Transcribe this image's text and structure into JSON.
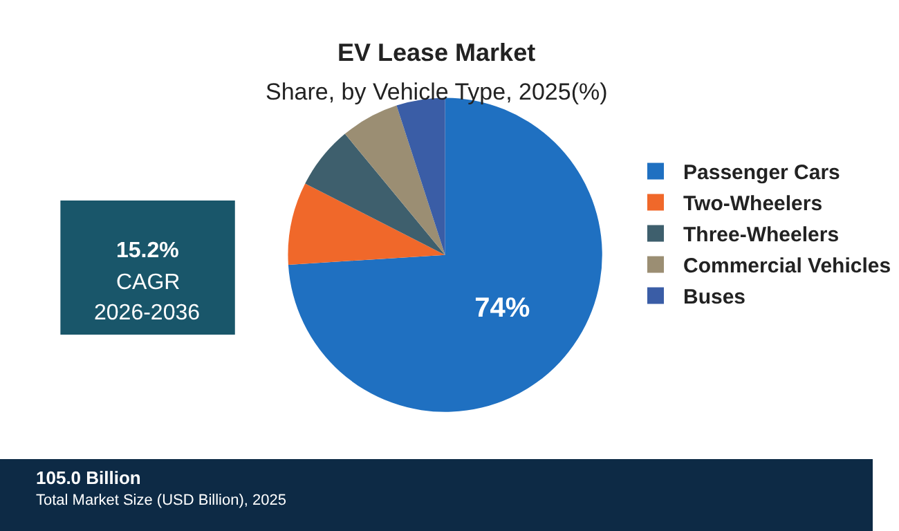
{
  "chart_data": {
    "type": "pie",
    "title": "EV Lease Market",
    "subtitle": "Share, by Vehicle Type, 2025(%)",
    "categories": [
      "Passenger Cars",
      "Two-Wheelers",
      "Three-Wheelers",
      "Commercial Vehicles",
      "Buses"
    ],
    "values": [
      74,
      8.5,
      6.5,
      6,
      5
    ],
    "colors": [
      "#1f70c1",
      "#f0682a",
      "#3e5f6d",
      "#9b8e73",
      "#3a5da6"
    ],
    "value_labels": [
      "74%",
      null,
      null,
      null,
      null
    ],
    "legend": "right",
    "annotations": [
      "15.2%",
      "CAGR",
      "2026-2036",
      "105.0 Billion",
      "Total Market Size (USD Billion), 2025"
    ]
  }
}
